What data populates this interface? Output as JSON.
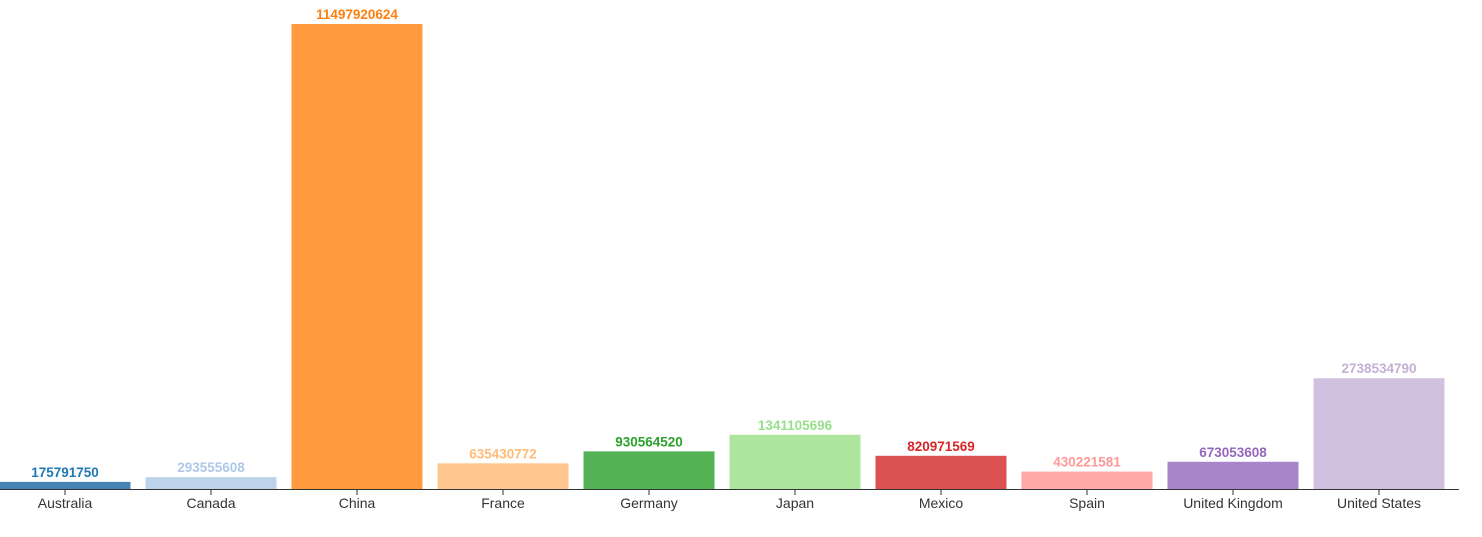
{
  "chart_data": {
    "type": "bar",
    "title": "",
    "xlabel": "",
    "ylabel": "",
    "ylim": [
      0,
      11497920624
    ],
    "grid": false,
    "legend": "none",
    "categories": [
      "Australia",
      "Canada",
      "China",
      "France",
      "Germany",
      "Japan",
      "Mexico",
      "Spain",
      "United Kingdom",
      "United States"
    ],
    "values": [
      175791750,
      293555608,
      11497920624,
      635430772,
      930564520,
      1341105696,
      820971569,
      430221581,
      673053608,
      2738534790
    ],
    "value_labels": [
      "175791750",
      "293555608",
      "11497920624",
      "635430772",
      "930564520",
      "1341105696",
      "820971569",
      "430221581",
      "673053608",
      "2738534790"
    ],
    "bar_colors": [
      "#4682b4",
      "#bdd2eb",
      "#ff9a3f",
      "#ffc690",
      "#54b354",
      "#ade59e",
      "#dc5252",
      "#ffa8a6",
      "#a884c8",
      "#d1c0df"
    ],
    "label_colors": [
      "#1f77b4",
      "#aec7e8",
      "#ff7f0e",
      "#ffbb78",
      "#2ca02c",
      "#98df8a",
      "#d62728",
      "#ff9896",
      "#9467bd",
      "#c5b0d5"
    ]
  }
}
